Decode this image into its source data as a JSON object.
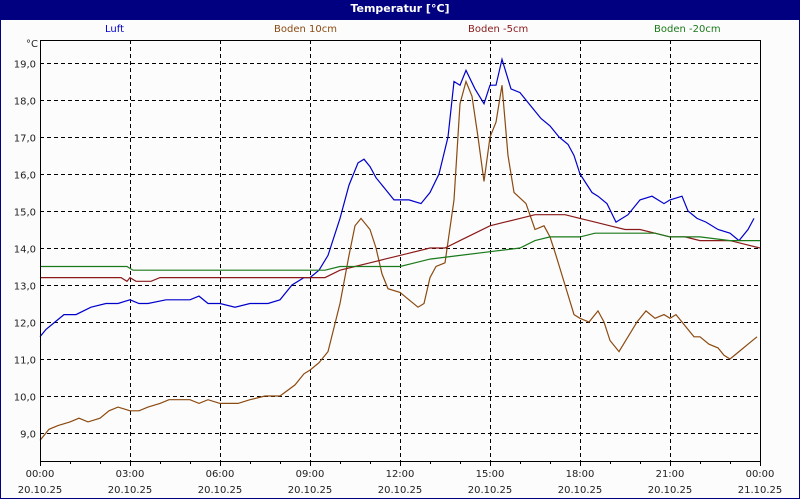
{
  "window": {
    "title": "Temperatur [°C]"
  },
  "chart_data": {
    "type": "line",
    "title": "Temperatur [°C]",
    "ylabel": "°C",
    "xlabel": "",
    "ylim": [
      8.3,
      19.6
    ],
    "xlim_hours": [
      0,
      24
    ],
    "grid": true,
    "legend_position": "top",
    "y_ticks": [
      "19,0",
      "18,0",
      "17,0",
      "16,0",
      "15,0",
      "14,0",
      "13,0",
      "12,0",
      "11,0",
      "10,0",
      "9,0"
    ],
    "y_tick_values": [
      19,
      18,
      17,
      16,
      15,
      14,
      13,
      12,
      11,
      10,
      9
    ],
    "x_ticks": [
      {
        "time": "00:00",
        "date": "20.10.25"
      },
      {
        "time": "03:00",
        "date": "20.10.25"
      },
      {
        "time": "06:00",
        "date": "20.10.25"
      },
      {
        "time": "09:00",
        "date": "20.10.25"
      },
      {
        "time": "12:00",
        "date": "20.10.25"
      },
      {
        "time": "15:00",
        "date": "20.10.25"
      },
      {
        "time": "18:00",
        "date": "20.10.25"
      },
      {
        "time": "21:00",
        "date": "20.10.25"
      },
      {
        "time": "00:00",
        "date": "21.10.25"
      }
    ],
    "series": [
      {
        "name": "Luft",
        "color": "#0000cc",
        "x": [
          0,
          0.2,
          0.5,
          0.8,
          1.2,
          1.7,
          2.2,
          2.6,
          3.0,
          3.3,
          3.6,
          4.2,
          4.6,
          5.0,
          5.3,
          5.6,
          6.0,
          6.5,
          7.0,
          7.3,
          7.6,
          8.0,
          8.4,
          8.8,
          9.0,
          9.3,
          9.6,
          10.0,
          10.3,
          10.6,
          10.8,
          11.0,
          11.2,
          11.5,
          11.8,
          12.3,
          12.7,
          13.0,
          13.3,
          13.6,
          13.8,
          14.0,
          14.2,
          14.5,
          14.8,
          15.0,
          15.2,
          15.4,
          15.7,
          16.0,
          16.3,
          16.7,
          17.0,
          17.3,
          17.6,
          17.8,
          18.0,
          18.4,
          18.6,
          18.9,
          19.2,
          19.6,
          20.0,
          20.4,
          20.8,
          21.0,
          21.4,
          21.6,
          21.9,
          22.2,
          22.6,
          23.0,
          23.3,
          23.6,
          23.8
        ],
        "y": [
          11.6,
          11.8,
          12.0,
          12.2,
          12.2,
          12.4,
          12.5,
          12.5,
          12.6,
          12.5,
          12.5,
          12.6,
          12.6,
          12.6,
          12.7,
          12.5,
          12.5,
          12.4,
          12.5,
          12.5,
          12.5,
          12.6,
          13.0,
          13.2,
          13.2,
          13.4,
          13.8,
          14.8,
          15.7,
          16.3,
          16.4,
          16.2,
          15.9,
          15.6,
          15.3,
          15.3,
          15.2,
          15.5,
          16.0,
          17.0,
          18.5,
          18.4,
          18.8,
          18.3,
          17.9,
          18.4,
          18.4,
          19.1,
          18.3,
          18.2,
          17.9,
          17.5,
          17.3,
          17.0,
          16.8,
          16.5,
          16.0,
          15.5,
          15.4,
          15.2,
          14.7,
          14.9,
          15.3,
          15.4,
          15.2,
          15.3,
          15.4,
          15.0,
          14.8,
          14.7,
          14.5,
          14.4,
          14.2,
          14.5,
          14.8
        ]
      },
      {
        "name": "Boden 10cm",
        "color": "#8b4a10",
        "x": [
          0,
          0.3,
          0.6,
          1.0,
          1.3,
          1.6,
          2.0,
          2.3,
          2.6,
          3.0,
          3.3,
          3.6,
          4.0,
          4.3,
          4.6,
          5.0,
          5.3,
          5.6,
          6.0,
          6.3,
          6.6,
          7.0,
          7.5,
          8.0,
          8.5,
          8.8,
          9.0,
          9.3,
          9.6,
          10.0,
          10.3,
          10.5,
          10.7,
          11.0,
          11.2,
          11.4,
          11.6,
          12.0,
          12.3,
          12.6,
          12.8,
          13.0,
          13.2,
          13.5,
          13.8,
          14.0,
          14.2,
          14.4,
          14.6,
          14.8,
          15.0,
          15.2,
          15.4,
          15.6,
          15.8,
          16.2,
          16.5,
          16.8,
          17.0,
          17.2,
          17.5,
          17.8,
          18.0,
          18.3,
          18.6,
          18.8,
          19.0,
          19.3,
          19.6,
          19.9,
          20.2,
          20.5,
          20.8,
          21.0,
          21.2,
          21.5,
          21.8,
          22.0,
          22.3,
          22.6,
          22.8,
          23.0,
          23.3,
          23.6,
          23.9
        ],
        "y": [
          8.8,
          9.1,
          9.2,
          9.3,
          9.4,
          9.3,
          9.4,
          9.6,
          9.7,
          9.6,
          9.6,
          9.7,
          9.8,
          9.9,
          9.9,
          9.9,
          9.8,
          9.9,
          9.8,
          9.8,
          9.8,
          9.9,
          10.0,
          10.0,
          10.3,
          10.6,
          10.7,
          10.9,
          11.2,
          12.5,
          13.8,
          14.6,
          14.8,
          14.5,
          14.0,
          13.3,
          12.9,
          12.8,
          12.6,
          12.4,
          12.5,
          13.2,
          13.5,
          13.6,
          15.3,
          17.9,
          18.5,
          18.1,
          17.0,
          15.8,
          17.0,
          17.4,
          18.4,
          16.5,
          15.5,
          15.2,
          14.5,
          14.6,
          14.3,
          13.8,
          13.0,
          12.2,
          12.1,
          12.0,
          12.3,
          12.0,
          11.5,
          11.2,
          11.6,
          12.0,
          12.3,
          12.1,
          12.2,
          12.1,
          12.2,
          11.9,
          11.6,
          11.6,
          11.4,
          11.3,
          11.1,
          11.0,
          11.2,
          11.4,
          11.6
        ]
      },
      {
        "name": "Boden -5cm",
        "color": "#8b1a1a",
        "x": [
          0,
          2.7,
          2.9,
          3.0,
          3.2,
          3.7,
          4.0,
          4.2,
          7.0,
          9.5,
          10.0,
          10.5,
          11.0,
          11.5,
          12.0,
          13.0,
          13.5,
          14.0,
          14.5,
          15.0,
          15.5,
          16.0,
          16.5,
          17.0,
          17.5,
          18.0,
          18.5,
          19.0,
          19.5,
          20.0,
          20.5,
          21.0,
          21.5,
          22.0,
          22.5,
          23.0,
          23.5,
          24.0
        ],
        "y": [
          13.2,
          13.2,
          13.1,
          13.2,
          13.1,
          13.1,
          13.2,
          13.2,
          13.2,
          13.2,
          13.4,
          13.5,
          13.6,
          13.7,
          13.8,
          14.0,
          14.0,
          14.2,
          14.4,
          14.6,
          14.7,
          14.8,
          14.9,
          14.9,
          14.9,
          14.8,
          14.7,
          14.6,
          14.5,
          14.5,
          14.4,
          14.3,
          14.3,
          14.2,
          14.2,
          14.2,
          14.1,
          14.0
        ]
      },
      {
        "name": "Boden -20cm",
        "color": "#1a7a1a",
        "x": [
          0,
          2.9,
          3.1,
          5.0,
          8.0,
          9.5,
          10.0,
          11.0,
          12.0,
          12.5,
          13.0,
          14.0,
          15.0,
          16.0,
          16.5,
          17.0,
          18.0,
          18.5,
          19.0,
          20.0,
          20.5,
          21.0,
          22.0,
          23.0,
          24.0
        ],
        "y": [
          13.5,
          13.5,
          13.4,
          13.4,
          13.4,
          13.4,
          13.5,
          13.5,
          13.5,
          13.6,
          13.7,
          13.8,
          13.9,
          14.0,
          14.2,
          14.3,
          14.3,
          14.4,
          14.4,
          14.4,
          14.4,
          14.3,
          14.3,
          14.2,
          14.2
        ]
      }
    ]
  }
}
